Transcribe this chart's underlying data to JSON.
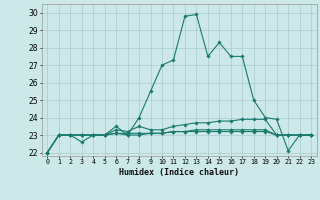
{
  "xlabel": "Humidex (Indice chaleur)",
  "bg_color": "#cce8e8",
  "grid_color": "#b0d0d0",
  "line_color": "#1a7a6e",
  "xlim": [
    -0.5,
    23.5
  ],
  "ylim": [
    21.8,
    30.5
  ],
  "yticks": [
    22,
    23,
    24,
    25,
    26,
    27,
    28,
    29,
    30
  ],
  "xtick_labels": [
    "0",
    "1",
    "2",
    "3",
    "4",
    "5",
    "6",
    "7",
    "8",
    "9",
    "10",
    "11",
    "12",
    "13",
    "14",
    "15",
    "16",
    "17",
    "18",
    "19",
    "20",
    "21",
    "22",
    "23"
  ],
  "series": [
    [
      22,
      23,
      23,
      23,
      23,
      23,
      23.5,
      23,
      24,
      25.5,
      27,
      27.3,
      29.8,
      29.9,
      27.5,
      28.3,
      27.5,
      27.5,
      25,
      24,
      23.9,
      22.1,
      23,
      23
    ],
    [
      22,
      23,
      23,
      23,
      23,
      23,
      23.3,
      23.2,
      23.5,
      23.3,
      23.3,
      23.5,
      23.6,
      23.7,
      23.7,
      23.8,
      23.8,
      23.9,
      23.9,
      23.9,
      23,
      23,
      23,
      23
    ],
    [
      22,
      23,
      23,
      23,
      23,
      23,
      23.1,
      23.0,
      23.0,
      23.1,
      23.1,
      23.2,
      23.2,
      23.3,
      23.3,
      23.3,
      23.3,
      23.3,
      23.3,
      23.3,
      23,
      23,
      23,
      23
    ],
    [
      22,
      23,
      23,
      22.6,
      23,
      23,
      23.1,
      23.1,
      23.1,
      23.1,
      23.1,
      23.2,
      23.2,
      23.2,
      23.2,
      23.2,
      23.2,
      23.2,
      23.2,
      23.2,
      23,
      23,
      23,
      23
    ]
  ]
}
